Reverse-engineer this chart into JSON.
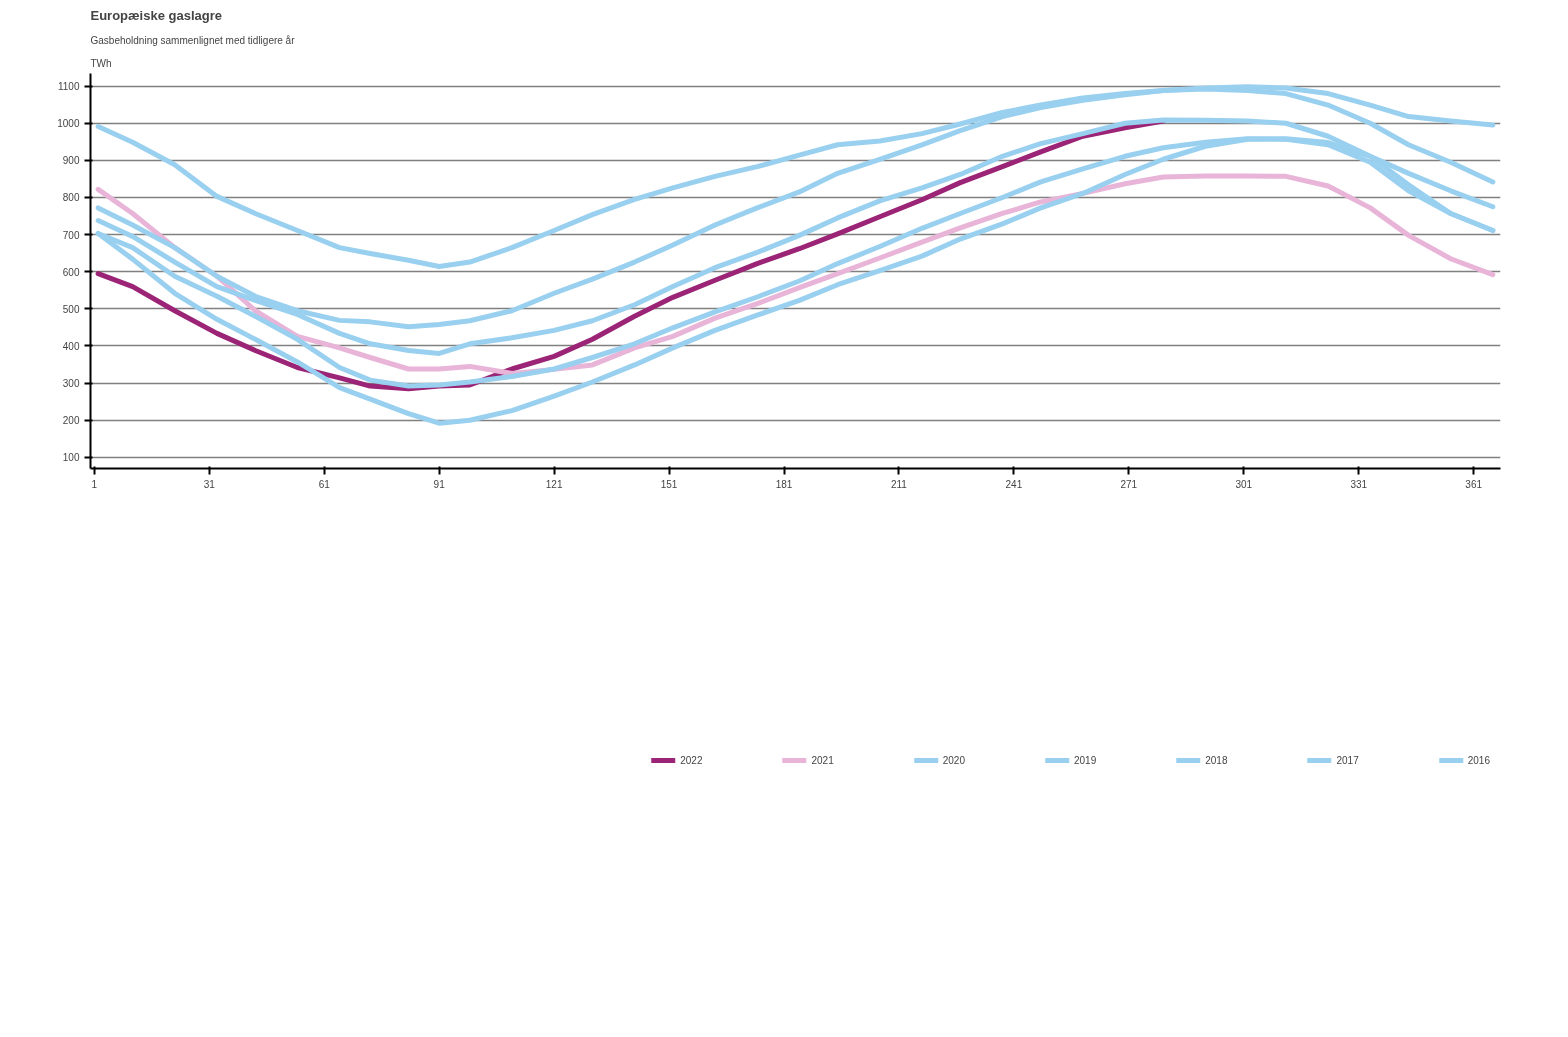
{
  "chart_data": {
    "type": "line",
    "title": "Europæiske gaslagre",
    "subtitle": "Gasbeholdning sammenlignet med tidligere år",
    "ylabel": "TWh",
    "x": [
      2,
      11,
      22,
      33,
      43,
      54,
      65,
      73,
      83,
      91,
      99,
      110,
      121,
      131,
      142,
      152,
      163,
      174,
      185,
      195,
      206,
      217,
      227,
      238,
      248,
      259,
      270,
      280,
      291,
      302,
      312,
      323,
      334,
      344,
      355,
      366
    ],
    "xlim": [
      0,
      368
    ],
    "xticks": [
      1,
      31,
      61,
      91,
      121,
      151,
      181,
      211,
      241,
      271,
      301,
      331,
      361
    ],
    "ylim": [
      70,
      1134
    ],
    "yticks": [
      100,
      200,
      300,
      400,
      500,
      600,
      700,
      800,
      900,
      1000,
      1100
    ],
    "grid": "y",
    "legend": "bottom",
    "line_style": "solid",
    "marker": "none",
    "series": [
      {
        "name": "2022",
        "color": "#9b2476",
        "values": [
          595,
          560,
          495,
          434,
          388,
          342,
          314,
          292,
          285,
          292,
          295,
          338,
          372,
          418,
          480,
          531,
          577,
          622,
          662,
          702,
          748,
          794,
          840,
          883,
          923,
          965,
          988,
          1006,
          null,
          null,
          null,
          null,
          null,
          null,
          null,
          null
        ]
      },
      {
        "name": "2021",
        "color": "#e8b4d8",
        "values": [
          822,
          757,
          665,
          588,
          495,
          426,
          395,
          369,
          338,
          338,
          345,
          326,
          337,
          349,
          395,
          426,
          475,
          514,
          557,
          595,
          637,
          680,
          718,
          757,
          788,
          811,
          837,
          855,
          858,
          858,
          857,
          831,
          772,
          698,
          635,
          592
        ]
      },
      {
        "name": "2020",
        "color": "#99d0ef",
        "values": [
          991,
          949,
          888,
          803,
          757,
          711,
          665,
          649,
          631,
          614,
          626,
          665,
          711,
          754,
          795,
          826,
          857,
          883,
          914,
          942,
          952,
          972,
          998,
          1029,
          1049,
          1068,
          1080,
          1088,
          1095,
          1098,
          1095,
          1080,
          1049,
          1018,
          1006,
          995
        ]
      },
      {
        "name": "2019",
        "color": "#99d0ef",
        "values": [
          772,
          726,
          665,
          588,
          534,
          495,
          469,
          465,
          452,
          458,
          468,
          495,
          542,
          580,
          626,
          672,
          726,
          772,
          815,
          865,
          903,
          942,
          980,
          1018,
          1042,
          1062,
          1077,
          1088,
          1092,
          1088,
          1080,
          1049,
          1000,
          942,
          895,
          842
        ]
      },
      {
        "name": "2018",
        "color": "#99d0ef",
        "values": [
          738,
          695,
          626,
          560,
          523,
          485,
          434,
          406,
          388,
          380,
          406,
          422,
          442,
          468,
          511,
          560,
          611,
          652,
          698,
          745,
          791,
          826,
          862,
          911,
          945,
          972,
          1000,
          1009,
          1008,
          1006,
          1000,
          965,
          911,
          834,
          757,
          711
        ]
      },
      {
        "name": "2017",
        "color": "#99d0ef",
        "values": [
          703,
          665,
          588,
          534,
          480,
          418,
          342,
          308,
          292,
          295,
          303,
          318,
          338,
          369,
          406,
          449,
          492,
          532,
          575,
          622,
          668,
          717,
          757,
          800,
          842,
          877,
          911,
          934,
          949,
          958,
          957,
          942,
          895,
          818,
          757,
          711
        ]
      },
      {
        "name": "2016",
        "color": "#99d0ef",
        "values": [
          703,
          634,
          542,
          472,
          418,
          357,
          288,
          257,
          218,
          192,
          200,
          226,
          265,
          303,
          349,
          395,
          442,
          483,
          523,
          565,
          603,
          642,
          688,
          729,
          772,
          811,
          862,
          903,
          938,
          957,
          958,
          948,
          911,
          865,
          818,
          775
        ]
      }
    ]
  }
}
